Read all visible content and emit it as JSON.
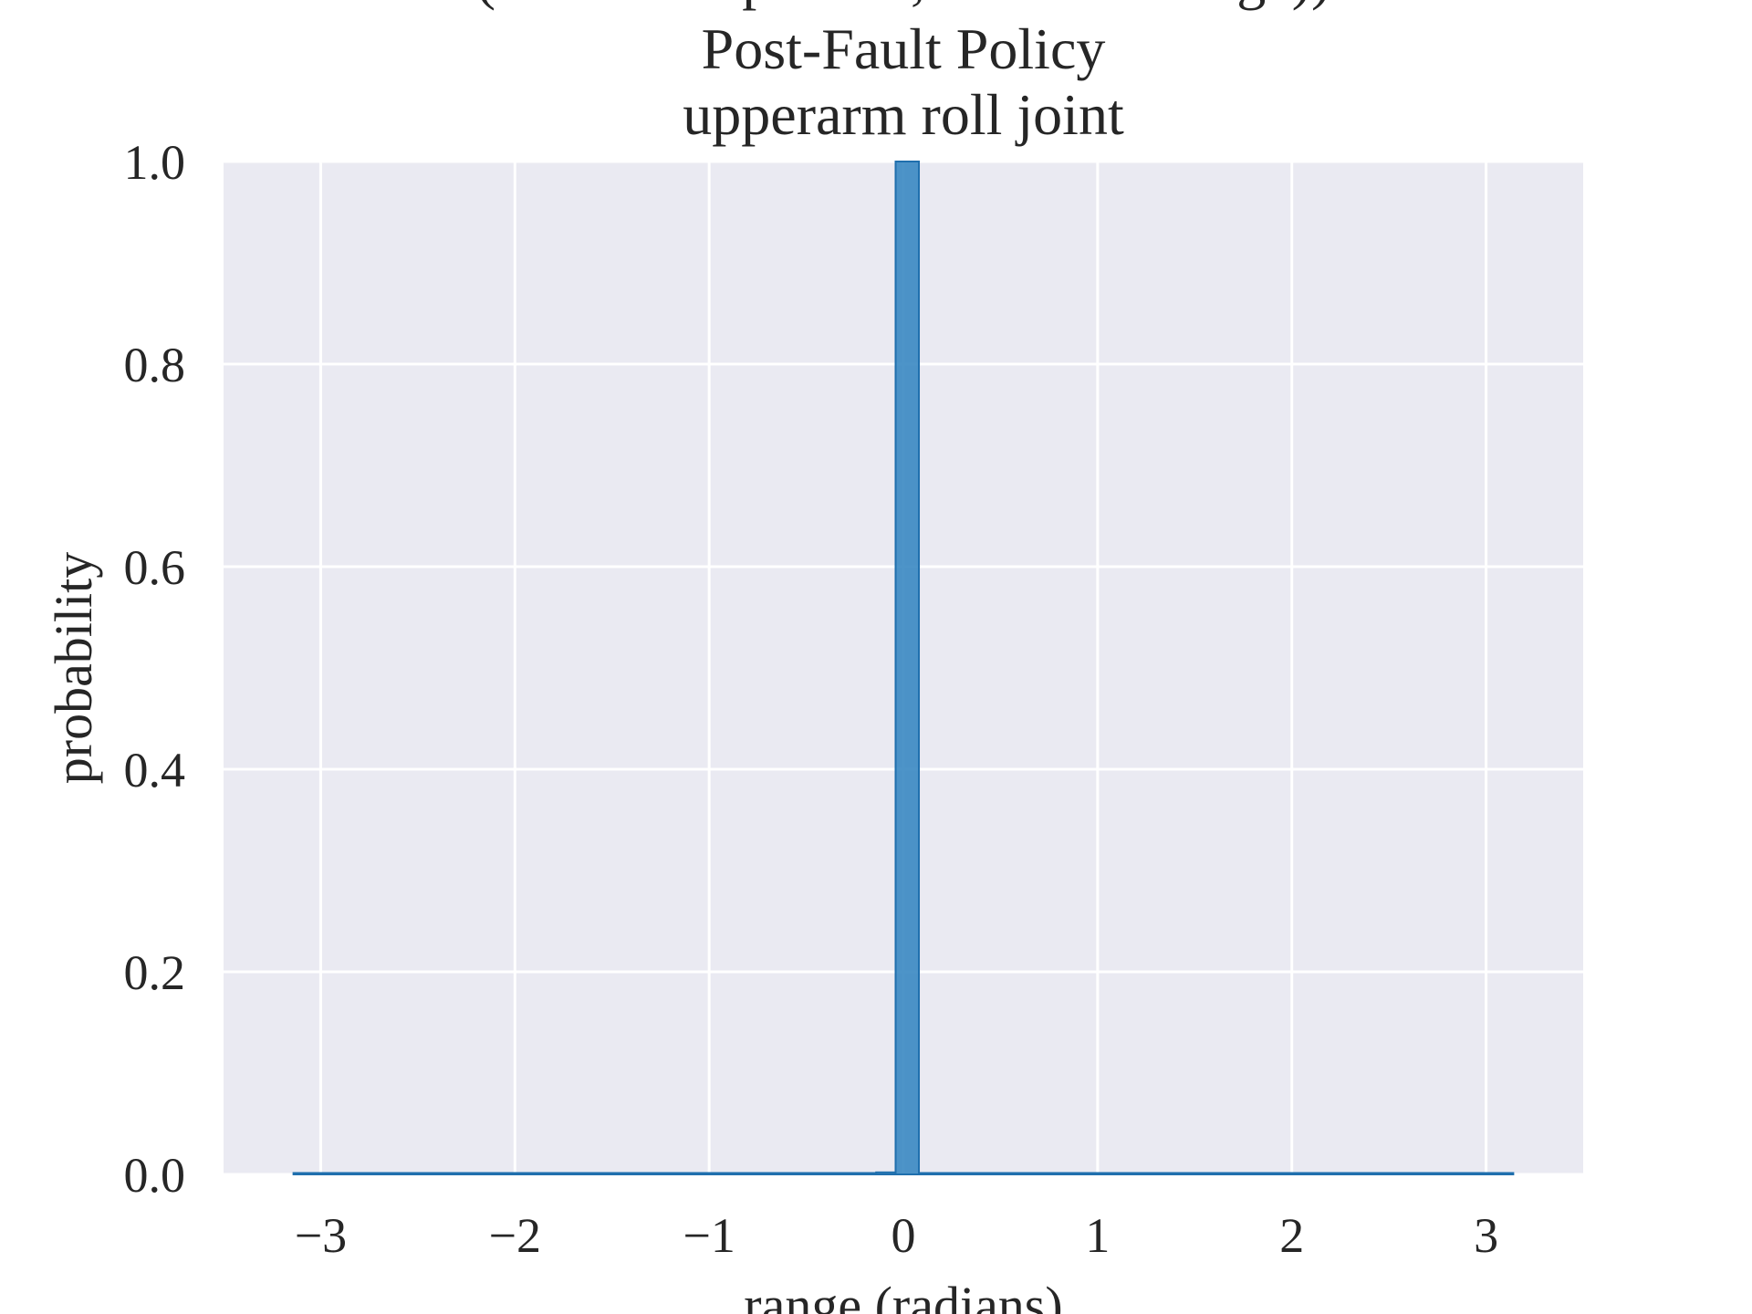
{
  "chart_data": {
    "type": "bar",
    "title_lines": [
      "(retain NN params, discard storage))",
      "Post-Fault Policy",
      "upperarm roll joint"
    ],
    "xlabel": "range (radians)",
    "ylabel": "probability",
    "xlim": [
      -3.5,
      3.5
    ],
    "ylim": [
      0,
      1.0
    ],
    "x_ticks": [
      -3,
      -2,
      -1,
      0,
      1,
      2,
      3
    ],
    "x_tick_labels": [
      "−3",
      "−2",
      "−1",
      "0",
      "1",
      "2",
      "3"
    ],
    "y_ticks": [
      0,
      0.2,
      0.4,
      0.6,
      0.8,
      1.0
    ],
    "y_tick_labels": [
      "0.0",
      "0.2",
      "0.4",
      "0.6",
      "0.8",
      "1.0"
    ],
    "grid": true,
    "bar_color": "#3a88c2",
    "bar_edge_color": "#1f6fad",
    "background_color": "#eaeaf2",
    "bins": [
      {
        "x0": -3.14,
        "x1": -0.14,
        "value": 0.0
      },
      {
        "x0": -0.14,
        "x1": -0.04,
        "value": 0.002
      },
      {
        "x0": -0.04,
        "x1": 0.08,
        "value": 1.0
      },
      {
        "x0": 0.08,
        "x1": 3.14,
        "value": 0.0
      }
    ]
  }
}
